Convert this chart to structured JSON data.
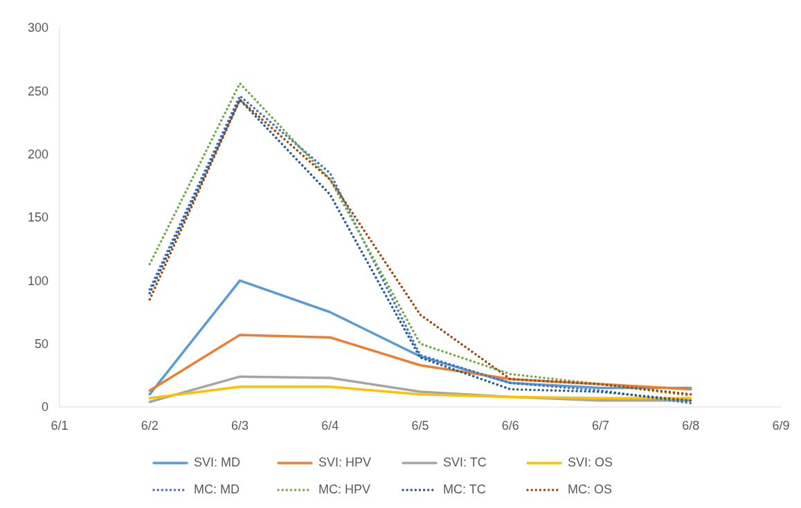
{
  "chart_data": {
    "type": "line",
    "x": [
      "--06-02",
      "--06-03",
      "--06-04",
      "--06-05",
      "--06-06",
      "--06-07",
      "--06-08"
    ],
    "xlim": [
      "--06-01",
      "--06-09"
    ],
    "xticks": [
      {
        "value": "--06-01",
        "label": "6/1"
      },
      {
        "value": "--06-02",
        "label": "6/2"
      },
      {
        "value": "--06-03",
        "label": "6/3"
      },
      {
        "value": "--06-04",
        "label": "6/4"
      },
      {
        "value": "--06-05",
        "label": "6/5"
      },
      {
        "value": "--06-06",
        "label": "6/6"
      },
      {
        "value": "--06-07",
        "label": "6/7"
      },
      {
        "value": "--06-08",
        "label": "6/8"
      },
      {
        "value": "--06-09",
        "label": "6/9"
      }
    ],
    "ylim": [
      0,
      300
    ],
    "yticks": [
      0,
      50,
      100,
      150,
      200,
      250,
      300
    ],
    "grid": false,
    "legend": "bottom",
    "marker": "none",
    "series": [
      {
        "name": "SVI: MD",
        "color": "#5b9bd5",
        "line_style": "solid",
        "values": [
          10,
          100,
          75,
          40,
          19,
          15,
          15
        ]
      },
      {
        "name": "SVI: HPV",
        "color": "#ed7d31",
        "line_style": "solid",
        "values": [
          13,
          57,
          55,
          33,
          22,
          18,
          14
        ]
      },
      {
        "name": "SVI: TC",
        "color": "#a5a5a5",
        "line_style": "solid",
        "values": [
          4,
          24,
          23,
          12,
          8,
          5,
          5
        ]
      },
      {
        "name": "SVI: OS",
        "color": "#ffc000",
        "line_style": "solid",
        "values": [
          7,
          16,
          16,
          10,
          8,
          7,
          7
        ]
      },
      {
        "name": "MC: MD",
        "color": "#4472c4",
        "line_style": "dotted",
        "values": [
          93,
          246,
          185,
          41,
          19,
          13,
          3
        ]
      },
      {
        "name": "MC: HPV",
        "color": "#70ad47",
        "line_style": "dotted",
        "values": [
          113,
          256,
          180,
          50,
          26,
          18,
          9
        ]
      },
      {
        "name": "MC: TC",
        "color": "#255e91",
        "line_style": "dotted",
        "values": [
          90,
          243,
          168,
          39,
          14,
          12,
          5
        ]
      },
      {
        "name": "MC: OS",
        "color": "#9e480e",
        "line_style": "dotted",
        "values": [
          85,
          243,
          180,
          73,
          22,
          18,
          10
        ]
      }
    ]
  }
}
